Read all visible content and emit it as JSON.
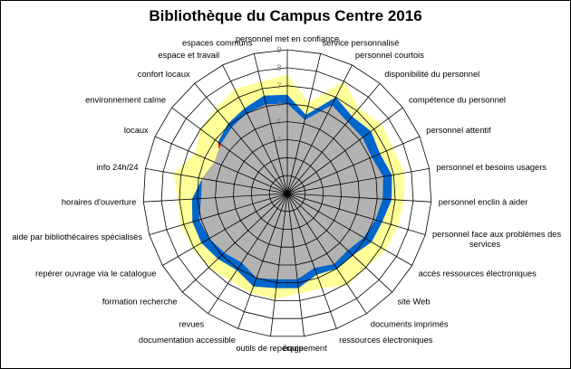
{
  "chart_data": {
    "type": "radar",
    "title": "Bibliothèque du Campus Centre 2016",
    "axes": [
      "personnel met en confiance",
      "service personnalisé",
      "personnel courtois",
      "disponibilité du personnel",
      "compétence du personnel",
      "personnel attentif",
      "personnel et besoins usagers",
      "personnel enclin à aider",
      "personnel face aux problèmes des services",
      "accès ressources électroniques",
      "site Web",
      "documents imprimés",
      "ressources électroniques",
      "équipement",
      "outils de repérage",
      "documentation accessible",
      "revues",
      "formation recherche",
      "repérer ouvrage via le catalogue",
      "aide par bibliothécaires spécialisés",
      "horaires d'ouverture",
      "info 24h/24",
      "locaux",
      "environnement calme",
      "confort locaux",
      "espace et travail",
      "espaces communs"
    ],
    "scale": {
      "min": 1,
      "max": 9,
      "gridlines": [
        1,
        2,
        3,
        4,
        5,
        6,
        7,
        8,
        9
      ],
      "tick_labels_shown": [
        "4",
        "5",
        "6",
        "7",
        "8",
        "9"
      ]
    },
    "series": [
      {
        "role": "desired",
        "color": "#ffff99",
        "values": [
          7.6,
          6.2,
          8.0,
          7.2,
          7.5,
          7.4,
          7.6,
          7.5,
          7.4,
          7.3,
          7.0,
          7.1,
          6.6,
          6.6,
          6.9,
          6.9,
          6.8,
          7.0,
          7.1,
          7.2,
          7.1,
          7.4,
          6.6,
          7.0,
          7.2,
          7.5,
          7.4
        ]
      },
      {
        "role": "perceived",
        "color": "#0066cc",
        "values": [
          6.5,
          5.5,
          7.0,
          6.6,
          6.8,
          6.6,
          6.9,
          6.8,
          6.5,
          6.4,
          6.0,
          6.0,
          5.8,
          6.3,
          6.3,
          6.5,
          6.1,
          6.3,
          6.5,
          6.5,
          6.3,
          5.8,
          5.0,
          5.8,
          6.1,
          6.3,
          6.6
        ]
      },
      {
        "role": "minimum",
        "color": "#b2b2b2",
        "values": [
          6.0,
          5.2,
          6.5,
          6.2,
          6.2,
          6.1,
          6.4,
          6.3,
          6.1,
          5.9,
          5.6,
          5.7,
          5.4,
          5.8,
          5.8,
          6.0,
          5.6,
          5.8,
          6.0,
          6.1,
          5.8,
          5.8,
          5.4,
          5.6,
          5.8,
          6.0,
          6.1
        ]
      }
    ],
    "gap_highlight_color": "#ff0000",
    "outer_ring_fill": "#ffffff",
    "grid_color": "#000000"
  }
}
